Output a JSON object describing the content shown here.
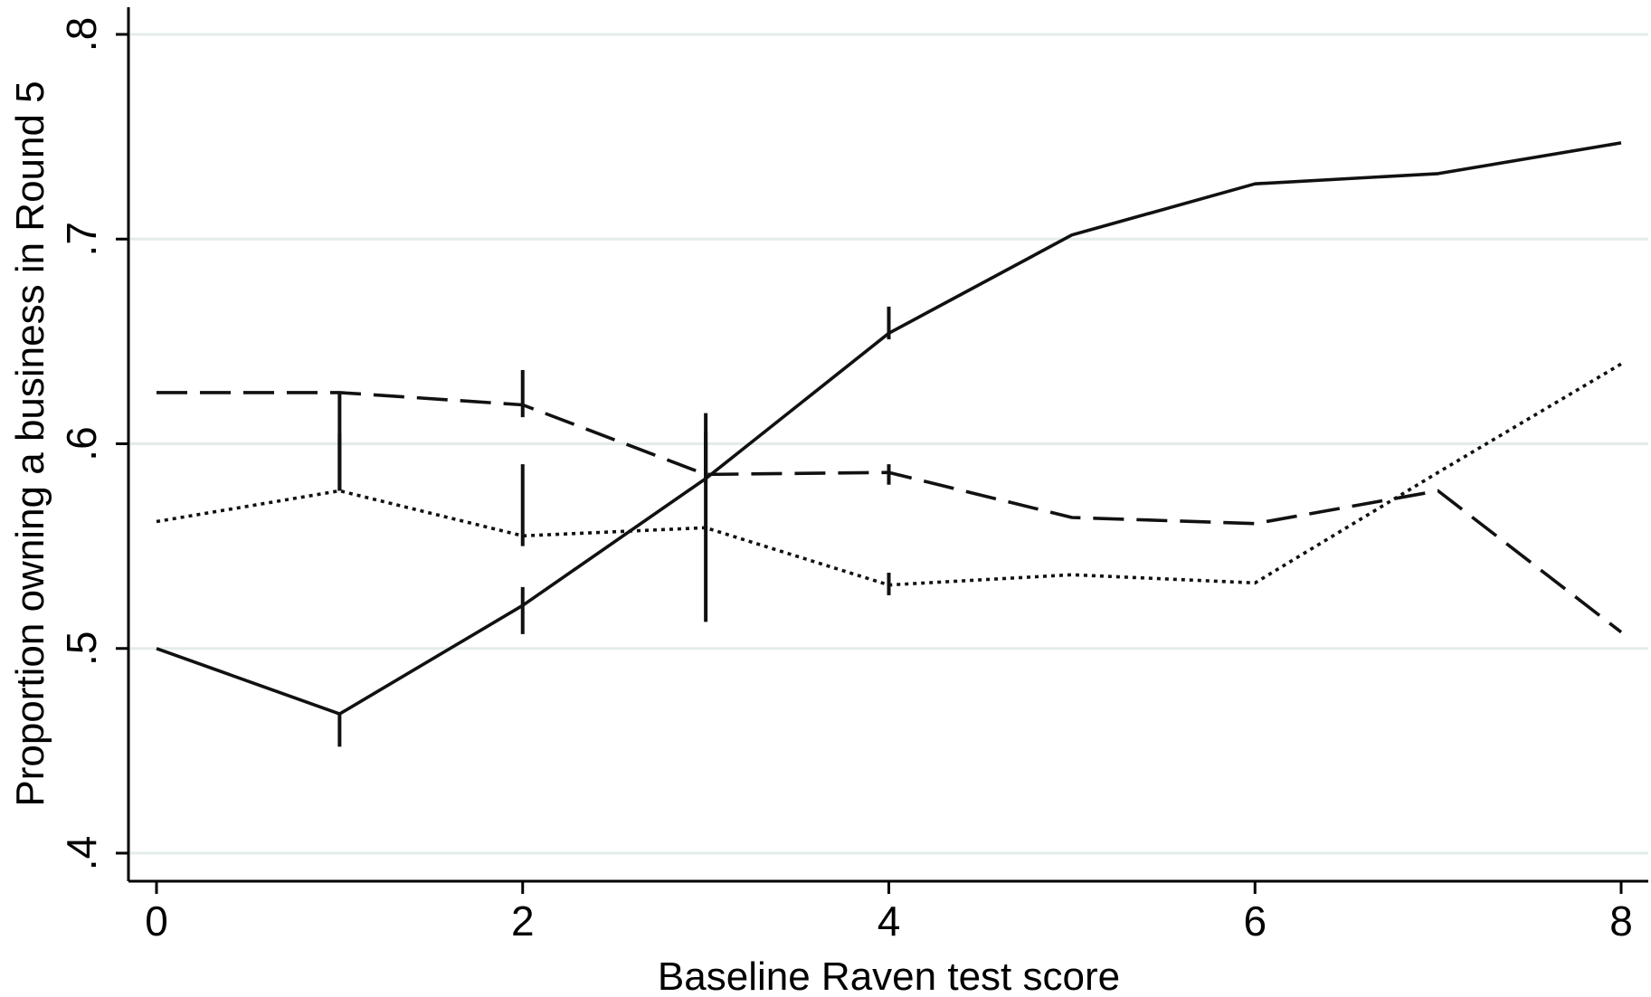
{
  "chart_data": {
    "type": "line",
    "title": "",
    "xlabel": "Baseline Raven test score",
    "ylabel": "Proportion owning a business in Round 5",
    "xlim": [
      0,
      8
    ],
    "ylim": [
      0.4,
      0.8
    ],
    "x_ticks": [
      0,
      2,
      4,
      6,
      8
    ],
    "x_tick_labels": [
      "0",
      "2",
      "4",
      "6",
      "8"
    ],
    "y_ticks": [
      0.4,
      0.5,
      0.6,
      0.7,
      0.8
    ],
    "y_tick_labels": [
      ".4",
      ".5",
      ".6",
      ".7",
      ".8"
    ],
    "grid": "horizontal",
    "legend": "none",
    "series": [
      {
        "style": "solid",
        "x": [
          0,
          1,
          2,
          3,
          4,
          5,
          6,
          7,
          8
        ],
        "y": [
          0.5,
          0.468,
          0.521,
          0.583,
          0.654,
          0.702,
          0.727,
          0.732,
          0.747
        ],
        "error_bars": [
          {
            "x": 1,
            "low": 0.452,
            "high": 0.468
          },
          {
            "x": 2,
            "low": 0.507,
            "high": 0.53
          },
          {
            "x": 3,
            "low": 0.581,
            "high": 0.601
          },
          {
            "x": 4,
            "low": 0.651,
            "high": 0.667
          }
        ]
      },
      {
        "style": "dashed",
        "x": [
          0,
          1,
          2,
          3,
          4,
          5,
          6,
          7,
          8
        ],
        "y": [
          0.625,
          0.625,
          0.619,
          0.585,
          0.586,
          0.564,
          0.561,
          0.577,
          0.508
        ],
        "error_bars": [
          {
            "x": 1,
            "low": 0.577,
            "high": 0.625
          },
          {
            "x": 2,
            "low": 0.613,
            "high": 0.636
          },
          {
            "x": 3,
            "low": 0.585,
            "high": 0.615
          },
          {
            "x": 4,
            "low": 0.58,
            "high": 0.59
          }
        ]
      },
      {
        "style": "dotted",
        "x": [
          0,
          1,
          2,
          3,
          4,
          5,
          6,
          7,
          8
        ],
        "y": [
          0.562,
          0.577,
          0.555,
          0.559,
          0.531,
          0.536,
          0.532,
          0.586,
          0.639
        ],
        "error_bars": [
          {
            "x": 1,
            "low": 0.577,
            "high": 0.605
          },
          {
            "x": 2,
            "low": 0.55,
            "high": 0.59
          },
          {
            "x": 3,
            "low": 0.513,
            "high": 0.606
          },
          {
            "x": 4,
            "low": 0.526,
            "high": 0.537
          }
        ]
      }
    ]
  }
}
